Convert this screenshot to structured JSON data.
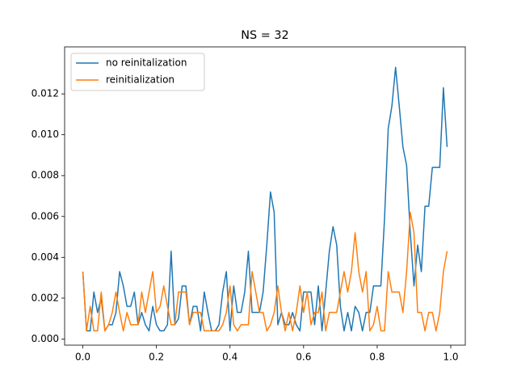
{
  "chart_data": {
    "type": "line",
    "title": "NS = 32",
    "x": [
      0,
      0.01,
      0.02,
      0.03,
      0.04,
      0.05,
      0.06,
      0.07,
      0.08,
      0.09,
      0.1,
      0.11,
      0.12,
      0.13,
      0.14,
      0.15,
      0.16,
      0.17,
      0.18,
      0.19,
      0.2,
      0.21,
      0.22,
      0.23,
      0.24,
      0.25,
      0.26,
      0.27,
      0.28,
      0.29,
      0.3,
      0.31,
      0.32,
      0.33,
      0.34,
      0.35,
      0.36,
      0.37,
      0.38,
      0.39,
      0.4,
      0.41,
      0.42,
      0.43,
      0.44,
      0.45,
      0.46,
      0.47,
      0.48,
      0.49,
      0.5,
      0.51,
      0.52,
      0.53,
      0.54,
      0.55,
      0.56,
      0.57,
      0.58,
      0.59,
      0.6,
      0.61,
      0.62,
      0.63,
      0.64,
      0.65,
      0.66,
      0.67,
      0.68,
      0.69,
      0.7,
      0.71,
      0.72,
      0.73,
      0.74,
      0.75,
      0.76,
      0.77,
      0.78,
      0.79,
      0.8,
      0.81,
      0.82,
      0.83,
      0.84,
      0.85,
      0.86,
      0.87,
      0.88,
      0.89,
      0.9,
      0.91,
      0.92,
      0.93,
      0.94,
      0.95,
      0.96,
      0.97,
      0.98,
      0.99
    ],
    "series": [
      {
        "name": "no reinitalization",
        "color": "#1f77b4",
        "values": [
          0.0033,
          0.0004,
          0.0004,
          0.0023,
          0.0013,
          0.002,
          0.0004,
          0.0007,
          0.0007,
          0.0013,
          0.0033,
          0.0026,
          0.0016,
          0.0016,
          0.0023,
          0.0007,
          0.0013,
          0.0007,
          0.0004,
          0.0016,
          0.0007,
          0.0004,
          0.0004,
          0.0007,
          0.0043,
          0.0007,
          0.001,
          0.0026,
          0.0026,
          0.0007,
          0.0016,
          0.0016,
          0.0004,
          0.0023,
          0.0013,
          0.0004,
          0.0004,
          0.0007,
          0.0023,
          0.0033,
          0.0004,
          0.0026,
          0.0013,
          0.0013,
          0.0023,
          0.0043,
          0.0013,
          0.0013,
          0.0013,
          0.0023,
          0.0046,
          0.0072,
          0.0062,
          0.0007,
          0.0013,
          0.0007,
          0.0007,
          0.0013,
          0.0007,
          0.0004,
          0.0023,
          0.0023,
          0.0023,
          0.0007,
          0.0026,
          0.0004,
          0.0023,
          0.0043,
          0.0055,
          0.0046,
          0.0016,
          0.0004,
          0.0013,
          0.0004,
          0.0016,
          0.0013,
          0.0004,
          0.0013,
          0.0013,
          0.0026,
          0.0026,
          0.0026,
          0.0059,
          0.0103,
          0.0114,
          0.0133,
          0.0114,
          0.0094,
          0.0085,
          0.0052,
          0.0026,
          0.0046,
          0.0033,
          0.0065,
          0.0065,
          0.0084,
          0.0084,
          0.0084,
          0.0123,
          0.0094
        ]
      },
      {
        "name": "reinitialization",
        "color": "#ff7f0e",
        "values": [
          0.0033,
          0.0004,
          0.0016,
          0.0004,
          0.0004,
          0.0023,
          0.0004,
          0.0007,
          0.0013,
          0.0023,
          0.0013,
          0.0004,
          0.0013,
          0.0007,
          0.0007,
          0.0007,
          0.0023,
          0.0013,
          0.0023,
          0.0033,
          0.0013,
          0.0016,
          0.0026,
          0.0016,
          0.0007,
          0.0007,
          0.0023,
          0.0023,
          0.0023,
          0.0007,
          0.0013,
          0.0013,
          0.0013,
          0.0004,
          0.0004,
          0.0004,
          0.0004,
          0.0004,
          0.0007,
          0.0013,
          0.0026,
          0.0007,
          0.0004,
          0.0007,
          0.0007,
          0.0007,
          0.0033,
          0.0023,
          0.0013,
          0.0013,
          0.0004,
          0.0007,
          0.0013,
          0.0026,
          0.0013,
          0.0004,
          0.0013,
          0.0004,
          0.0013,
          0.0026,
          0.0013,
          0.0023,
          0.0007,
          0.0013,
          0.0013,
          0.0023,
          0.0004,
          0.0013,
          0.0013,
          0.0013,
          0.0023,
          0.0033,
          0.0023,
          0.0033,
          0.0052,
          0.0033,
          0.0023,
          0.0033,
          0.0004,
          0.0007,
          0.0016,
          0.0004,
          0.0004,
          0.0033,
          0.0023,
          0.0023,
          0.0023,
          0.0013,
          0.0033,
          0.0062,
          0.0052,
          0.0013,
          0.0013,
          0.0004,
          0.0013,
          0.0013,
          0.0004,
          0.0013,
          0.0033,
          0.0043
        ]
      }
    ],
    "xlim": [
      -0.0495,
      1.0395
    ],
    "ylim": [
      -0.0003,
      0.0143
    ],
    "xticks": [
      {
        "value": 0,
        "label": "0.0"
      },
      0.2,
      0.4,
      0.6,
      0.8,
      {
        "value": 1,
        "label": "1.0"
      }
    ],
    "yticks": [
      {
        "value": 0,
        "label": "0.000"
      },
      {
        "value": 0.002,
        "label": "0.002"
      },
      {
        "value": 0.004,
        "label": "0.004"
      },
      {
        "value": 0.006,
        "label": "0.006"
      },
      {
        "value": 0.008,
        "label": "0.008"
      },
      {
        "value": 0.01,
        "label": "0.010"
      },
      {
        "value": 0.012,
        "label": "0.012"
      }
    ],
    "legend": "upper left"
  }
}
